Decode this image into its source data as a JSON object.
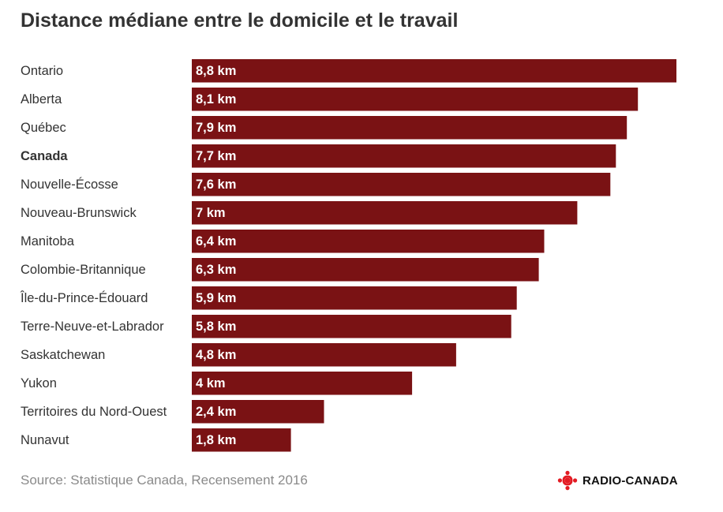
{
  "chart_data": {
    "type": "bar",
    "orientation": "horizontal",
    "title": "Distance médiane entre le domicile et le travail",
    "unit": "km",
    "highlight_category": "Canada",
    "categories": [
      "Ontario",
      "Alberta",
      "Québec",
      "Canada",
      "Nouvelle-Écosse",
      "Nouveau-Brunswick",
      "Manitoba",
      "Colombie-Britannique",
      "Île-du-Prince-Édouard",
      "Terre-Neuve-et-Labrador",
      "Saskatchewan",
      "Yukon",
      "Territoires du Nord-Ouest",
      "Nunavut"
    ],
    "values": [
      8.8,
      8.1,
      7.9,
      7.7,
      7.6,
      7.0,
      6.4,
      6.3,
      5.9,
      5.8,
      4.8,
      4.0,
      2.4,
      1.8
    ],
    "value_labels": [
      "8,8 km",
      "8,1 km",
      "7,9 km",
      "7,7 km",
      "7,6 km",
      "7 km",
      "6,4 km",
      "6,3 km",
      "5,9 km",
      "5,8 km",
      "4,8 km",
      "4 km",
      "2,4 km",
      "1,8 km"
    ],
    "xlim": [
      0,
      8.8
    ],
    "grid": false,
    "legend": "none",
    "bar_color": "#7a1214",
    "source": "Source: Statistique Canada, Recensement 2016"
  },
  "branding": {
    "logo": "radio-canada-gem-icon",
    "name": "RADIO-CANADA",
    "logo_color": "#e31b23"
  }
}
